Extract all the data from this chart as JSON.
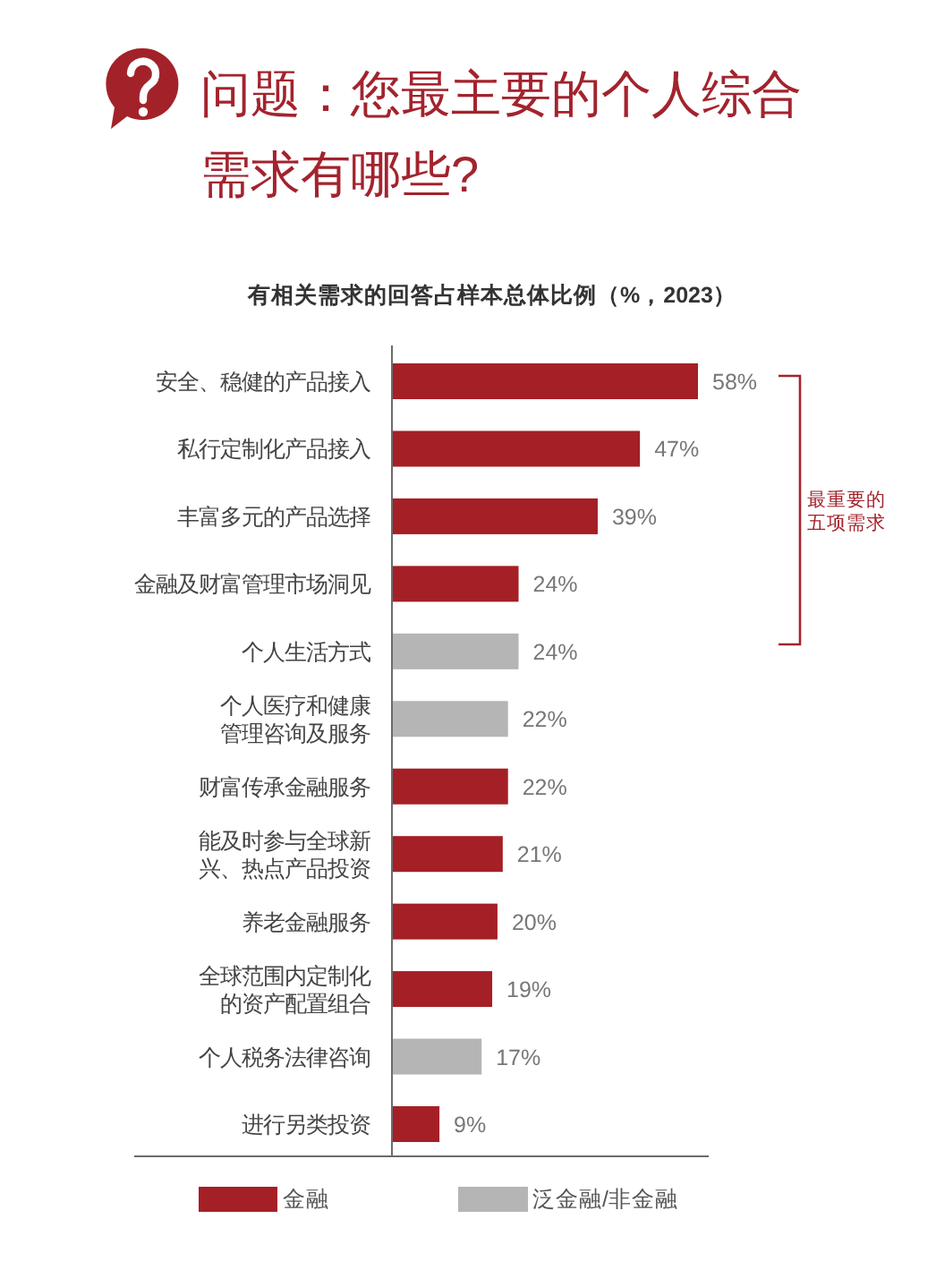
{
  "chart_data": {
    "type": "bar",
    "orientation": "horizontal",
    "stacked": true,
    "title": "问题：您最主要的个人综合需求有哪些?",
    "subtitle": "有相关需求的回答占样本总体比例（%，2023）",
    "categories": [
      "安全、稳健的产品接入",
      "私行定制化产品接入",
      "丰富多元的产品选择",
      "金融及财富管理市场洞见",
      "个人生活方式",
      "个人医疗和健康管理咨询及服务",
      "财富传承金融服务",
      "能及时参与全球新兴、热点产品投资",
      "养老金融服务",
      "全球范围内定制化的资产配置组合",
      "个人税务法律咨询",
      "进行另类投资"
    ],
    "series": [
      {
        "name": "金融",
        "color": "#a51f26",
        "values": [
          58,
          47,
          39,
          24,
          null,
          null,
          22,
          21,
          20,
          19,
          null,
          9
        ],
        "value_labels": [
          "58%",
          "47%",
          "39%",
          "24%",
          null,
          null,
          "22%",
          "21%",
          "20%",
          "19%",
          null,
          "9%"
        ]
      },
      {
        "name": "泛金融/非金融",
        "color": "#b5b5b5",
        "values": [
          null,
          null,
          null,
          null,
          24,
          22,
          null,
          null,
          null,
          null,
          17,
          null
        ],
        "value_labels": [
          null,
          null,
          null,
          null,
          "24%",
          "22%",
          null,
          null,
          null,
          null,
          "17%",
          null
        ]
      }
    ],
    "annotations": [
      "最重要的五项需求"
    ],
    "legend": "bottom"
  }
}
